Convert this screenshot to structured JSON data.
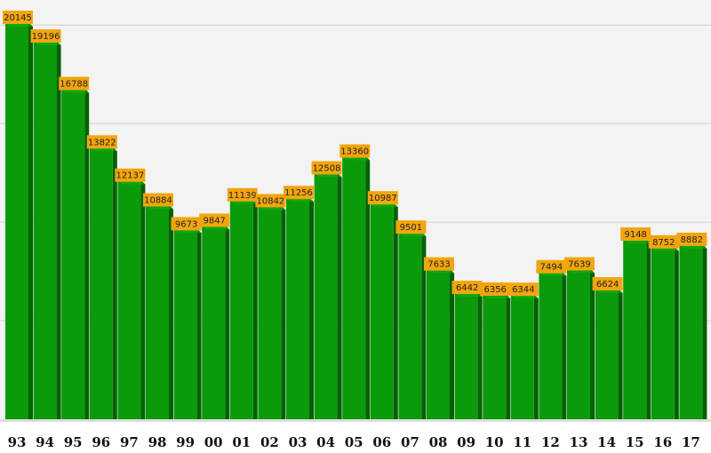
{
  "chart_data": {
    "type": "bar",
    "categories": [
      "93",
      "94",
      "95",
      "96",
      "97",
      "98",
      "99",
      "00",
      "01",
      "02",
      "03",
      "04",
      "05",
      "06",
      "07",
      "08",
      "09",
      "10",
      "11",
      "12",
      "13",
      "14",
      "15",
      "16",
      "17"
    ],
    "values": [
      20145,
      19196,
      16788,
      13822,
      12137,
      10884,
      9673,
      9847,
      11139,
      10842,
      11256,
      12508,
      13360,
      10987,
      9501,
      7633,
      6442,
      6356,
      6344,
      7494,
      7639,
      6624,
      9148,
      8752,
      8882
    ],
    "ylim": [
      0,
      21000
    ],
    "grid": true,
    "legend": "none",
    "colors": {
      "bar_front": "#0a9a0a",
      "bar_top": "#11b311",
      "bar_side": "#056005",
      "label_bg": "#f2a50c",
      "plot_bg": "#f3f3f3",
      "grid": "#d0d0d0"
    }
  }
}
